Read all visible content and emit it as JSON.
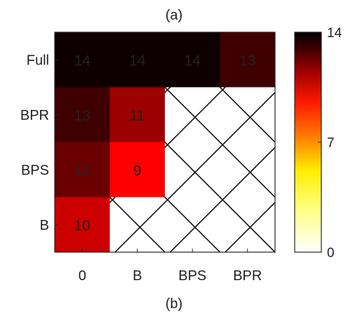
{
  "chart_data": {
    "type": "heatmap",
    "title": "(a)",
    "caption": "(b)",
    "x_categories": [
      "0",
      "B",
      "BPS",
      "BPR"
    ],
    "y_categories": [
      "Full",
      "BPR",
      "BPS",
      "B"
    ],
    "values": [
      [
        14,
        14,
        14,
        13
      ],
      [
        13,
        11,
        null,
        null
      ],
      [
        12,
        9,
        null,
        null
      ],
      [
        10,
        null,
        null,
        null
      ]
    ],
    "missing_cells_marker": "diagonal cross-hatch",
    "colorbar": {
      "colormap": "hot (reversed)",
      "min": 0,
      "max": 14,
      "ticks": [
        0,
        7,
        14
      ]
    },
    "colors": {
      "cell_14": "#0e0000",
      "cell_13": "#3f0000",
      "cell_12": "#6b0000",
      "cell_11": "#9c0000",
      "cell_10": "#cd0000",
      "cell_9": "#ff0000",
      "text_dark_cells": "#ffffff",
      "text_light_cells": "#222222"
    }
  }
}
